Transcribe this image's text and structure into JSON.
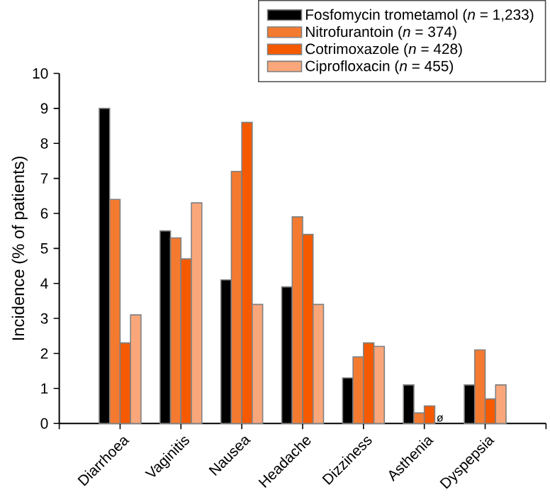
{
  "chart_data": {
    "type": "bar",
    "ylabel": "Incidence (% of patients)",
    "categories": [
      "Diarrhoea",
      "Vaginitis",
      "Nausea",
      "Headache",
      "Dizziness",
      "Asthenia",
      "Dyspepsia"
    ],
    "series": [
      {
        "name": "Fosfomycin trometamol (*n* = 1,233)",
        "color": "#000000",
        "values": [
          9,
          5.5,
          4.1,
          3.9,
          1.3,
          1.1,
          1.1
        ]
      },
      {
        "name": "Nitrofurantoin (*n* = 374)",
        "color": "#f47a30",
        "values": [
          6.4,
          5.3,
          7.2,
          5.9,
          1.9,
          0.3,
          2.1
        ]
      },
      {
        "name": "Cotrimoxazole (*n* = 428)",
        "color": "#f55a00",
        "values": [
          2.3,
          4.7,
          8.6,
          5.4,
          2.3,
          0.5,
          0.7
        ]
      },
      {
        "name": "Ciprofloxacin (*n* = 455)",
        "color": "#f9a77a",
        "values": [
          3.1,
          6.3,
          3.4,
          3.4,
          2.2,
          null,
          1.1
        ],
        "value_labels": [
          null,
          null,
          null,
          null,
          null,
          "ø",
          null
        ]
      }
    ],
    "ylim": [
      0,
      10
    ],
    "yticks": [
      0,
      1,
      2,
      3,
      4,
      5,
      6,
      7,
      8,
      9,
      10
    ],
    "legend": "top right"
  }
}
